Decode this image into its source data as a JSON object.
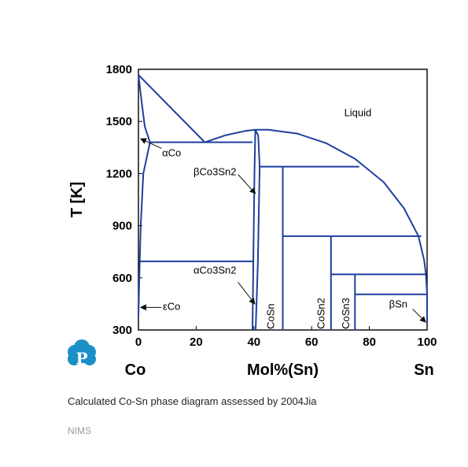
{
  "chart_data": {
    "type": "phase-diagram",
    "title": "",
    "xlabel": "Mol%(Sn)",
    "ylabel": "T [K]",
    "xlim": [
      0,
      100
    ],
    "ylim": [
      300,
      1800
    ],
    "x_ticks": [
      "0",
      "20",
      "40",
      "60",
      "80",
      "100"
    ],
    "y_ticks": [
      "300",
      "600",
      "900",
      "1200",
      "1500",
      "1800"
    ],
    "end_labels": {
      "left": "Co",
      "right": "Sn"
    },
    "line_color": "#1f3f9f",
    "boundaries": [
      {
        "name": "liquidus-co-side",
        "points": [
          [
            0,
            1768
          ],
          [
            23,
            1380
          ]
        ]
      },
      {
        "name": "alpha-co-solvus",
        "points": [
          [
            0,
            1768
          ],
          [
            1.2,
            1600
          ],
          [
            2.2,
            1470
          ],
          [
            4,
            1380
          ]
        ]
      },
      {
        "name": "alpha-co-lower",
        "points": [
          [
            0,
            380
          ],
          [
            0.3,
            600
          ],
          [
            0.8,
            900
          ],
          [
            1.7,
            1200
          ],
          [
            4,
            1380
          ]
        ]
      },
      {
        "name": "liquidus-dome",
        "points": [
          [
            23,
            1380
          ],
          [
            30,
            1420
          ],
          [
            37,
            1445
          ],
          [
            40.5,
            1452
          ],
          [
            45,
            1452
          ],
          [
            55,
            1430
          ],
          [
            65,
            1375
          ],
          [
            75,
            1285
          ],
          [
            85,
            1150
          ],
          [
            92,
            1000
          ],
          [
            97,
            840
          ],
          [
            99,
            700
          ],
          [
            99.6,
            620
          ],
          [
            100,
            505
          ]
        ]
      },
      {
        "name": "co3sn2-left",
        "points": [
          [
            39.5,
            300
          ],
          [
            39.8,
            700
          ],
          [
            40.2,
            1200
          ],
          [
            40.5,
            1450
          ]
        ]
      },
      {
        "name": "co3sn2-right",
        "points": [
          [
            40.5,
            1452
          ],
          [
            41.5,
            1420
          ],
          [
            42,
            1240
          ],
          [
            41.4,
            700
          ],
          [
            41,
            500
          ],
          [
            40.6,
            300
          ]
        ]
      },
      {
        "name": "cosn-line",
        "points": [
          [
            50,
            300
          ],
          [
            50,
            1240
          ]
        ]
      },
      {
        "name": "cosn2-line",
        "points": [
          [
            66.7,
            300
          ],
          [
            66.7,
            840
          ]
        ]
      },
      {
        "name": "cosn3-line",
        "points": [
          [
            75,
            300
          ],
          [
            75,
            620
          ]
        ]
      },
      {
        "name": "sn-side",
        "points": [
          [
            100,
            340
          ],
          [
            100,
            505
          ]
        ]
      }
    ],
    "horizontals": [
      {
        "name": "eutectic-co-side",
        "x": [
          4,
          39.5
        ],
        "y": 1380
      },
      {
        "name": "peritectic-cosn",
        "x": [
          42,
          76.5
        ],
        "y": 1240
      },
      {
        "name": "peritectic-cosn2",
        "x": [
          50,
          98
        ],
        "y": 840
      },
      {
        "name": "peritectic-cosn3",
        "x": [
          66.7,
          99.5
        ],
        "y": 620
      },
      {
        "name": "eutectic-sn",
        "x": [
          75,
          100
        ],
        "y": 505
      },
      {
        "name": "co-transition",
        "x": [
          0.3,
          40
        ],
        "y": 695
      }
    ],
    "annotations": [
      {
        "text": "Liquid",
        "x": 76,
        "y": 1530,
        "rot": 0
      },
      {
        "text": "αCo",
        "x": 11.5,
        "y": 1300,
        "rot": 0
      },
      {
        "text": "βCo3Sn2",
        "x": 26.5,
        "y": 1190,
        "rot": 0
      },
      {
        "text": "αCo3Sn2",
        "x": 26.5,
        "y": 625,
        "rot": 0
      },
      {
        "text": "εCo",
        "x": 11.5,
        "y": 415,
        "rot": 0
      },
      {
        "text": "βSn",
        "x": 90,
        "y": 430,
        "rot": 0
      },
      {
        "text": "CoSn",
        "x": 47,
        "y": 305,
        "rot": -90
      },
      {
        "text": "CoSn2",
        "x": 64.5,
        "y": 305,
        "rot": -90
      },
      {
        "text": "CoSn3",
        "x": 73,
        "y": 305,
        "rot": -90
      }
    ],
    "arrows": [
      {
        "name": "alpha-co-arrow",
        "from": [
          8,
          1345
        ],
        "to": [
          0.8,
          1400
        ]
      },
      {
        "name": "beta-co3sn2-arrow",
        "from": [
          34.5,
          1195
        ],
        "to": [
          40.5,
          1085
        ]
      },
      {
        "name": "alpha-co3sn2-arrow",
        "from": [
          34.5,
          575
        ],
        "to": [
          40.3,
          450
        ]
      },
      {
        "name": "epsilon-co-arrow",
        "from": [
          8,
          430
        ],
        "to": [
          0.8,
          430
        ]
      },
      {
        "name": "beta-sn-arrow",
        "from": [
          95,
          420
        ],
        "to": [
          99.5,
          345
        ]
      }
    ]
  },
  "caption": "Calculated Co-Sn phase diagram assessed by 2004Jia",
  "credit": "NIMS",
  "logo": {
    "letter": "P",
    "color": "#1b8fc7"
  }
}
